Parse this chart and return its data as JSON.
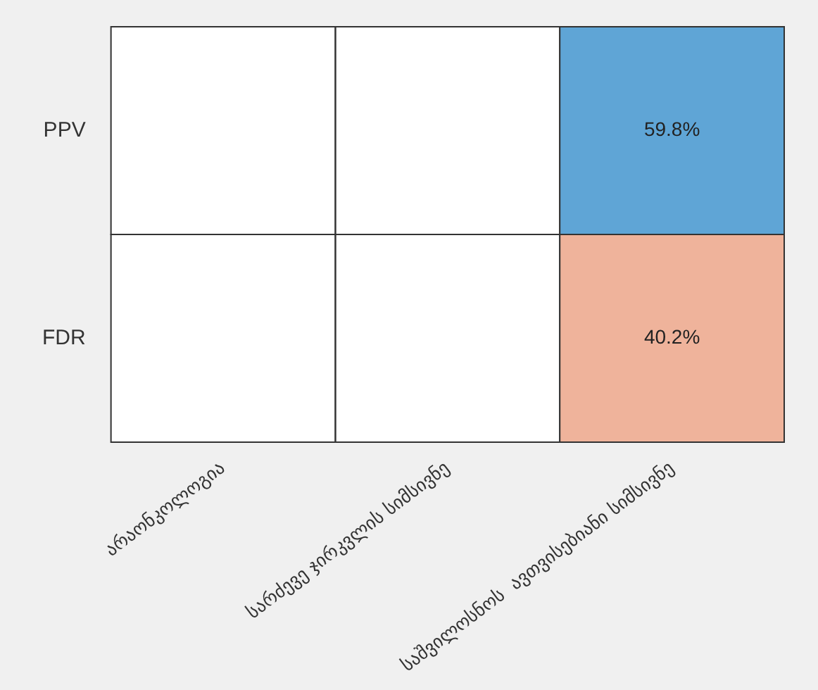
{
  "chart_data": {
    "type": "heatmap",
    "categories": [
      "არაონკოლოგია",
      "სარძევე ჯირკვლის სიმსივნე",
      "საშვილოსნოს  ავთვისებიანი სიმსივნე"
    ],
    "y_categories": [
      "PPV",
      "FDR"
    ],
    "cells": [
      [
        null,
        null,
        59.8
      ],
      [
        null,
        null,
        40.2
      ]
    ],
    "cell_labels": [
      [
        null,
        null,
        "59.8%"
      ],
      [
        null,
        null,
        "40.2%"
      ]
    ],
    "colors": [
      "#5fa5d6",
      "#efb39b"
    ]
  }
}
